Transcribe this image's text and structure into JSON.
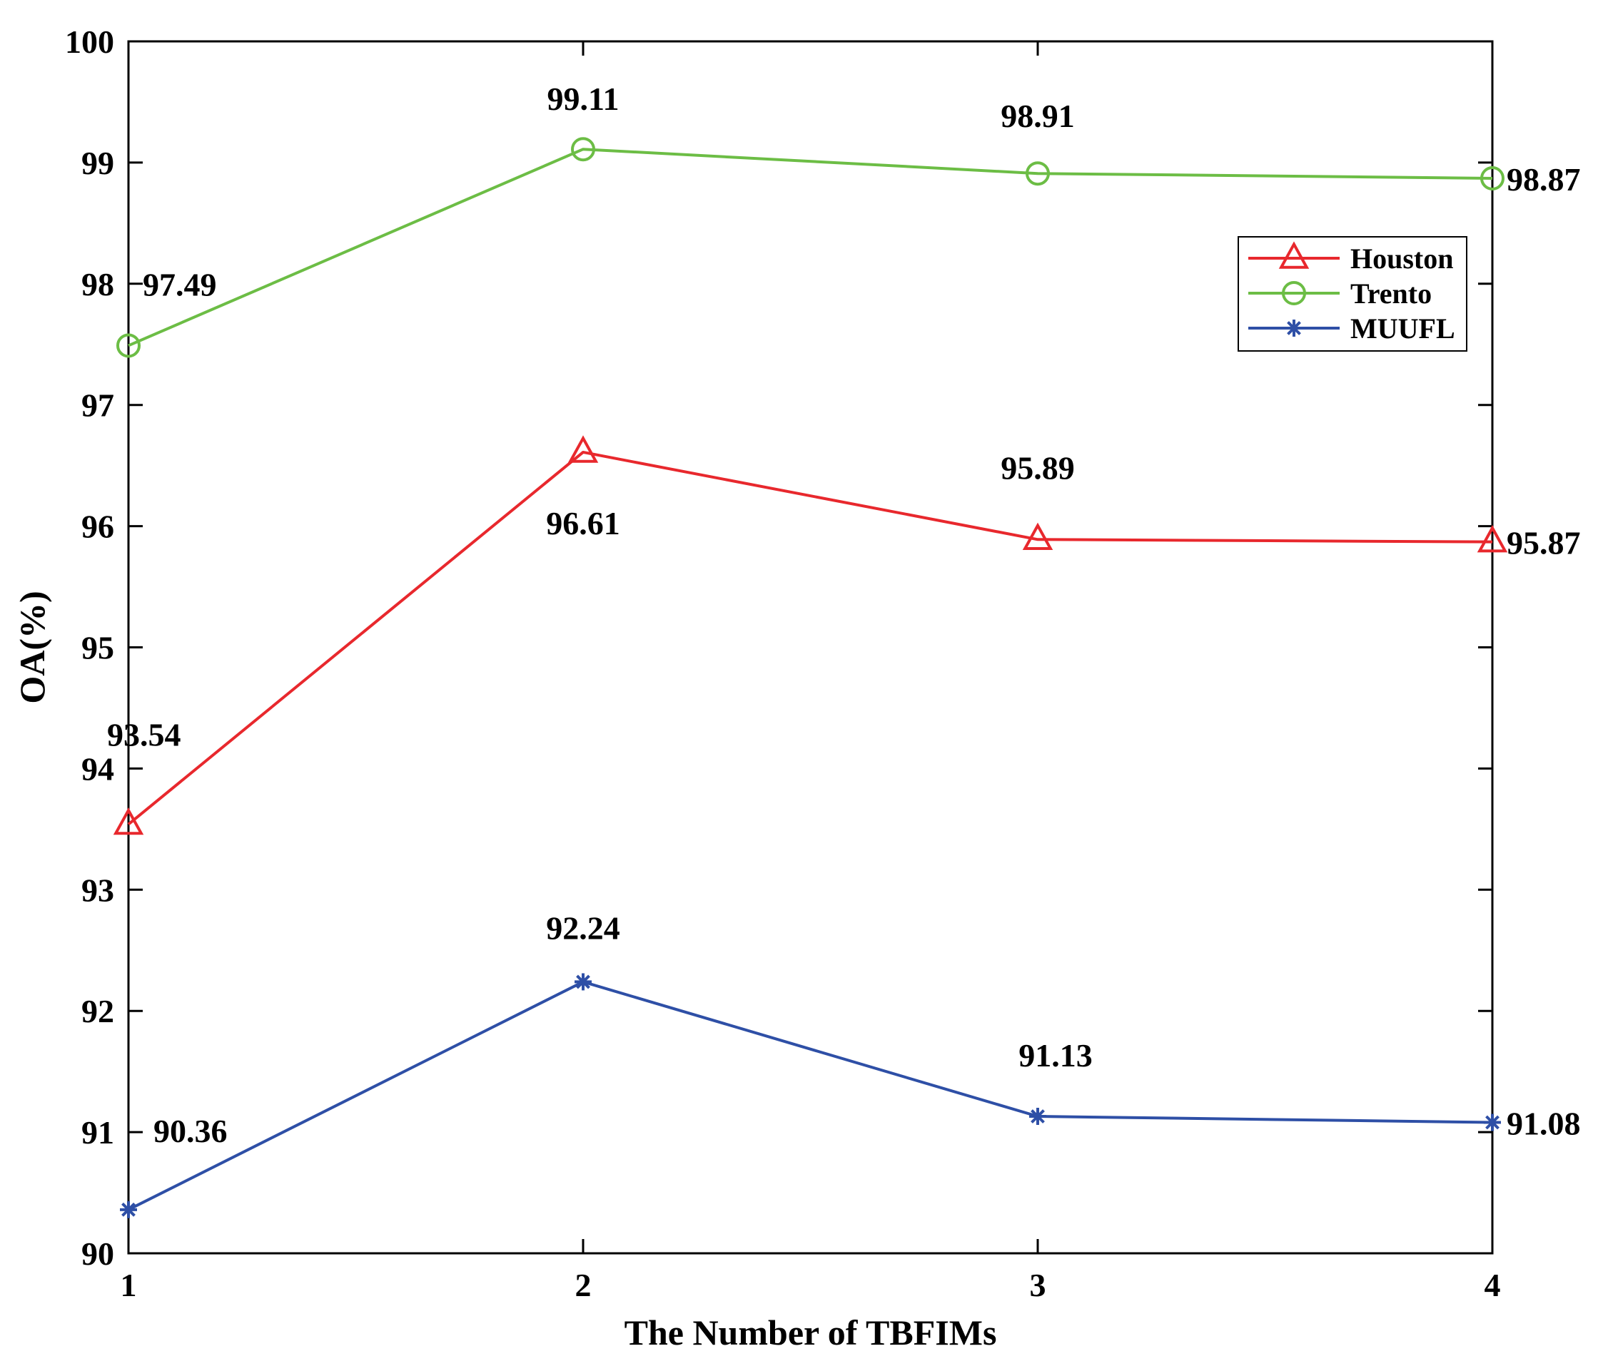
{
  "chart_data": {
    "type": "line",
    "title": "",
    "xlabel": "The Number of TBFIMs",
    "ylabel": "OA(%)",
    "x": [
      1,
      2,
      3,
      4
    ],
    "xlim": [
      1,
      4
    ],
    "ylim": [
      90,
      100
    ],
    "xticks": [
      "1",
      "2",
      "3",
      "4"
    ],
    "yticks": [
      "90",
      "91",
      "92",
      "93",
      "94",
      "95",
      "96",
      "97",
      "98",
      "99",
      "100"
    ],
    "grid": false,
    "legend_position": "top-right",
    "series": [
      {
        "name": "Houston",
        "color": "#e8282d",
        "marker": "triangle",
        "values": [
          93.54,
          96.61,
          95.89,
          95.87
        ],
        "labels": [
          "93.54",
          "96.61",
          "95.89",
          "95.87"
        ]
      },
      {
        "name": "Trento",
        "color": "#6cbd45",
        "marker": "circle",
        "values": [
          97.49,
          99.11,
          98.91,
          98.87
        ],
        "labels": [
          "97.49",
          "99.11",
          "98.91",
          "98.87"
        ]
      },
      {
        "name": "MUUFL",
        "color": "#2e4fa6",
        "marker": "asterisk",
        "values": [
          90.36,
          92.24,
          91.13,
          91.08
        ],
        "labels": [
          "90.36",
          "92.24",
          "91.13",
          "91.08"
        ]
      }
    ]
  }
}
